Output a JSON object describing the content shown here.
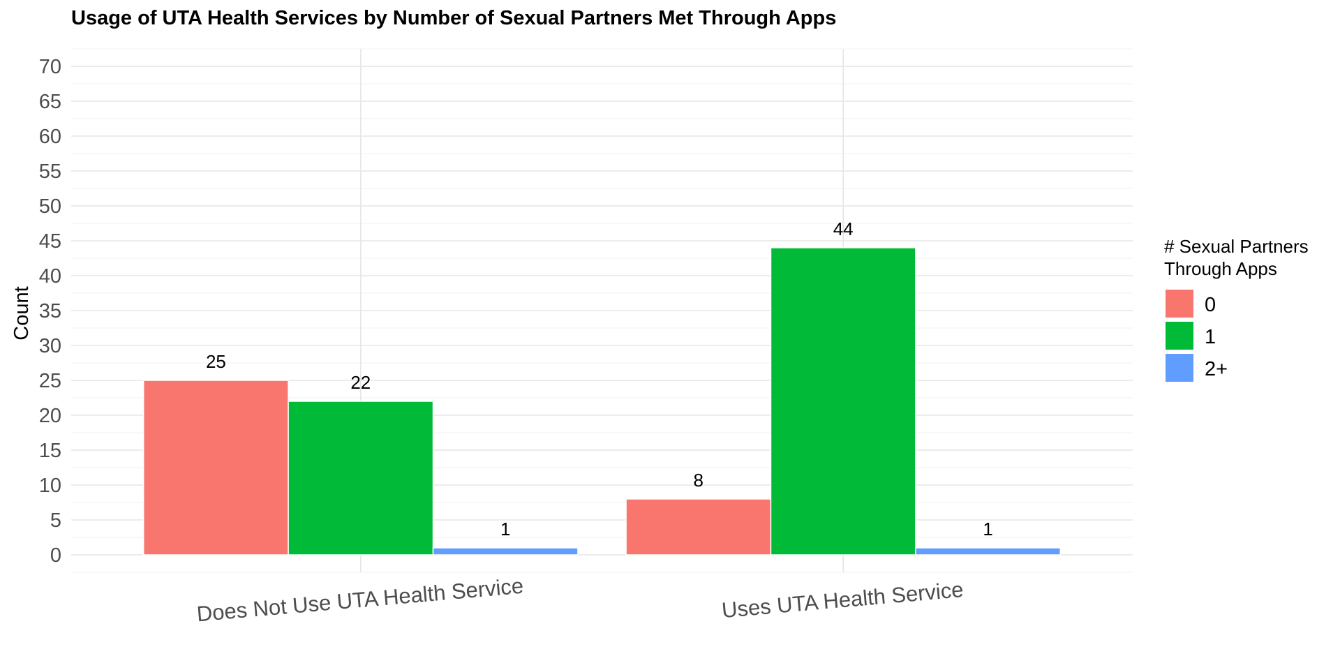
{
  "chart_data": {
    "type": "bar",
    "title": "Usage of UTA Health Services by Number of Sexual Partners Met Through Apps",
    "xlabel": "",
    "ylabel": "Count",
    "categories": [
      "Does Not Use UTA Health Service",
      "Uses UTA Health Service"
    ],
    "series": [
      {
        "name": "0",
        "values": [
          25,
          8
        ],
        "color": "#F8766D"
      },
      {
        "name": "1",
        "values": [
          22,
          44
        ],
        "color": "#00BA38"
      },
      {
        "name": "2+",
        "values": [
          1,
          1
        ],
        "color": "#619CFF"
      }
    ],
    "ylim": [
      -2.5,
      72.5
    ],
    "yticks": [
      0,
      5,
      10,
      15,
      20,
      25,
      30,
      35,
      40,
      45,
      50,
      55,
      60,
      65,
      70
    ],
    "legend": {
      "title_lines": [
        "# Sexual Partners",
        " Through Apps"
      ],
      "position": "right"
    },
    "grid": true
  }
}
